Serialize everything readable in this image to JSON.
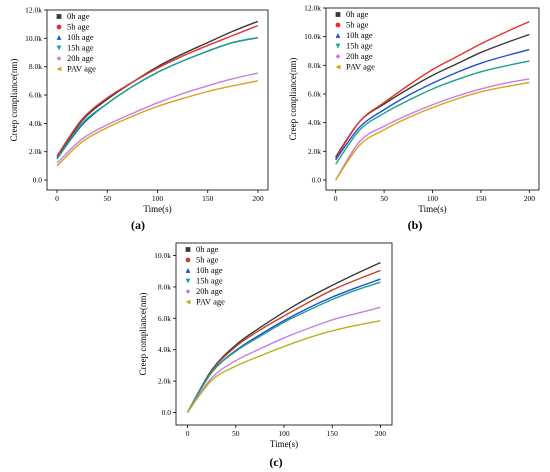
{
  "figure": {
    "panel_labels": [
      "(a)",
      "(b)",
      "(c)"
    ]
  },
  "chart_data": [
    {
      "type": "line",
      "panel": "(a)",
      "xlabel": "Time(s)",
      "ylabel": "Creep compliance(nm)",
      "xlim": [
        -10,
        210
      ],
      "ylim": [
        -700,
        12000
      ],
      "xticks": [
        0,
        50,
        100,
        150,
        200
      ],
      "yticks": [
        0,
        2000,
        4000,
        6000,
        8000,
        10000,
        12000
      ],
      "xtick_labels": [
        "0",
        "50",
        "100",
        "150",
        "200"
      ],
      "ytick_labels": [
        "0.0",
        "2.0k",
        "4.0k",
        "6.0k",
        "8.0k",
        "10.0k",
        "12.0k"
      ],
      "legend_position": "top-left",
      "x": [
        0,
        25,
        50,
        75,
        100,
        125,
        150,
        175,
        200
      ],
      "series": [
        {
          "name": "0h age",
          "color": "#3a3a3a",
          "marker": "square",
          "values": [
            1600,
            4200,
            5700,
            6900,
            8000,
            8900,
            9700,
            10500,
            11200
          ]
        },
        {
          "name": "5h age",
          "color": "#e8312f",
          "marker": "circle",
          "values": [
            1700,
            4300,
            5800,
            6900,
            7900,
            8750,
            9500,
            10200,
            10900
          ]
        },
        {
          "name": "10h age",
          "color": "#1f4fd1",
          "marker": "triangle-up",
          "values": [
            1500,
            3900,
            5400,
            6600,
            7600,
            8400,
            9100,
            9700,
            10050
          ]
        },
        {
          "name": "15h age",
          "color": "#1aa38a",
          "marker": "triangle-down",
          "values": [
            1500,
            4000,
            5400,
            6600,
            7600,
            8400,
            9100,
            9700,
            10050
          ]
        },
        {
          "name": "20h age",
          "color": "#c57ee0",
          "marker": "diamond",
          "values": [
            1200,
            2900,
            3900,
            4700,
            5450,
            6100,
            6650,
            7150,
            7550
          ]
        },
        {
          "name": "PAV age",
          "color": "#d9a21b",
          "marker": "triangle-left",
          "values": [
            1000,
            2700,
            3700,
            4500,
            5200,
            5750,
            6250,
            6650,
            7000
          ]
        }
      ]
    },
    {
      "type": "line",
      "panel": "(b)",
      "xlabel": "Time(s)",
      "ylabel": "Creep compliance(nm)",
      "xlim": [
        -10,
        210
      ],
      "ylim": [
        -700,
        12000
      ],
      "xticks": [
        0,
        50,
        100,
        150,
        200
      ],
      "yticks": [
        0,
        2000,
        4000,
        6000,
        8000,
        10000,
        12000
      ],
      "xtick_labels": [
        "0",
        "50",
        "100",
        "150",
        "200"
      ],
      "ytick_labels": [
        "0.0",
        "2.0k",
        "4.0k",
        "6.0k",
        "8.0k",
        "10.0k",
        "12.0k"
      ],
      "legend_position": "top-left",
      "x": [
        0,
        25,
        50,
        75,
        100,
        125,
        150,
        175,
        200
      ],
      "series": [
        {
          "name": "0h age",
          "color": "#3a3a3a",
          "marker": "square",
          "values": [
            1600,
            4100,
            5300,
            6350,
            7300,
            8100,
            8900,
            9550,
            10150
          ]
        },
        {
          "name": "5h age",
          "color": "#e8312f",
          "marker": "circle",
          "values": [
            1500,
            4100,
            5400,
            6600,
            7700,
            8600,
            9500,
            10300,
            11050
          ]
        },
        {
          "name": "10h age",
          "color": "#1f4fd1",
          "marker": "triangle-up",
          "values": [
            1400,
            3700,
            4900,
            5900,
            6750,
            7500,
            8150,
            8650,
            9100
          ]
        },
        {
          "name": "15h age",
          "color": "#1aa38a",
          "marker": "triangle-down",
          "values": [
            1100,
            3500,
            4650,
            5550,
            6350,
            7000,
            7550,
            7950,
            8300
          ]
        },
        {
          "name": "20h age",
          "color": "#c57ee0",
          "marker": "diamond",
          "values": [
            0,
            2700,
            3750,
            4550,
            5250,
            5850,
            6350,
            6750,
            7050
          ]
        },
        {
          "name": "PAV age",
          "color": "#d9a21b",
          "marker": "triangle-left",
          "values": [
            0,
            2450,
            3500,
            4350,
            5050,
            5650,
            6150,
            6500,
            6800
          ]
        }
      ]
    },
    {
      "type": "line",
      "panel": "(c)",
      "xlabel": "Time(s)",
      "ylabel": "Creep compliance(nm)",
      "xlim": [
        -12,
        212
      ],
      "ylim": [
        -800,
        10800
      ],
      "xticks": [
        0,
        50,
        100,
        150,
        200
      ],
      "yticks": [
        0,
        2000,
        4000,
        6000,
        8000,
        10000
      ],
      "xtick_labels": [
        "0",
        "50",
        "100",
        "150",
        "200"
      ],
      "ytick_labels": [
        "0.0",
        "2.0k",
        "4.0k",
        "6.0k",
        "8.0k",
        "10.0k"
      ],
      "legend_position": "top-left",
      "x": [
        0,
        25,
        50,
        75,
        100,
        125,
        150,
        175,
        200
      ],
      "series": [
        {
          "name": "0h age",
          "color": "#3a3a3a",
          "marker": "square",
          "values": [
            0,
            2700,
            4300,
            5400,
            6400,
            7300,
            8100,
            8850,
            9550
          ]
        },
        {
          "name": "5h age",
          "color": "#c0452a",
          "marker": "circle",
          "values": [
            0,
            2650,
            4200,
            5250,
            6150,
            7000,
            7800,
            8450,
            9050
          ]
        },
        {
          "name": "10h age",
          "color": "#1f4fd1",
          "marker": "triangle-up",
          "values": [
            0,
            2550,
            3950,
            4950,
            5850,
            6650,
            7350,
            7950,
            8500
          ]
        },
        {
          "name": "15h age",
          "color": "#1aa38a",
          "marker": "triangle-down",
          "values": [
            0,
            2550,
            3900,
            4850,
            5750,
            6500,
            7200,
            7800,
            8300
          ]
        },
        {
          "name": "20h age",
          "color": "#c57ee0",
          "marker": "diamond",
          "values": [
            0,
            2200,
            3300,
            4050,
            4750,
            5350,
            5900,
            6300,
            6700
          ]
        },
        {
          "name": "PAV age",
          "color": "#b8b21f",
          "marker": "triangle-left",
          "values": [
            0,
            2050,
            2950,
            3600,
            4200,
            4750,
            5200,
            5550,
            5850
          ]
        }
      ]
    }
  ]
}
